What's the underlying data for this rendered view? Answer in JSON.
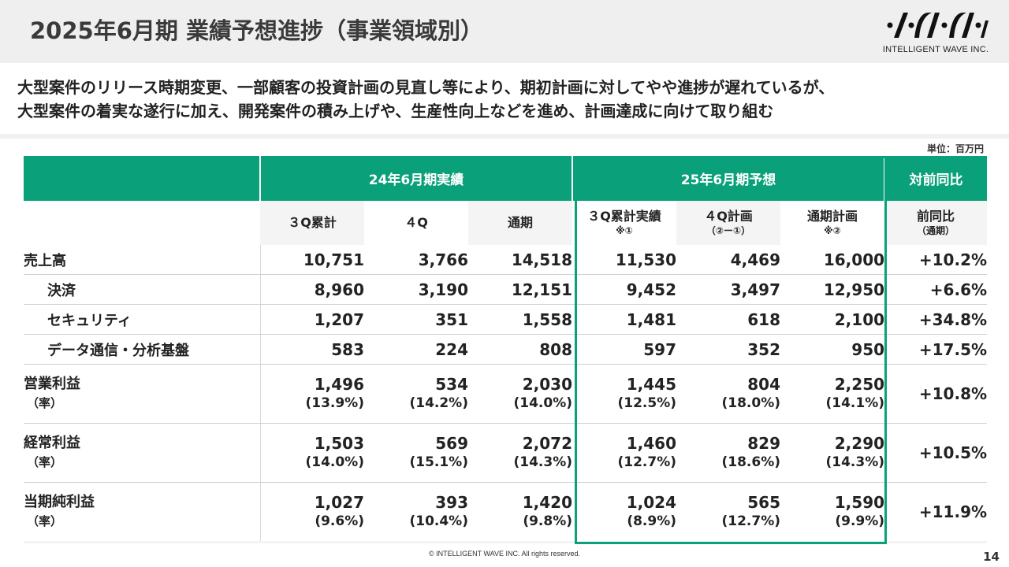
{
  "header": {
    "title": "2025年6月期 業績予想進捗（事業領域別）",
    "logo_text": "INTELLIGENT WAVE INC."
  },
  "summary": {
    "line1": "大型案件のリリース時期変更、一部顧客の投資計画の見直し等により、期初計画に対してやや進捗が遅れているが、",
    "line2": "大型案件の着実な遂行に加え、開発案件の積み上げや、生産性向上などを進め、計画達成に向けて取り組む"
  },
  "unit": "単位：百万円",
  "table": {
    "group_headers": {
      "actual": "24年6月期実績",
      "forecast": "25年6月期予想",
      "yoy": "対前同比"
    },
    "columns": [
      {
        "label": "３Q累計",
        "sub": ""
      },
      {
        "label": "４Q",
        "sub": ""
      },
      {
        "label": "通期",
        "sub": ""
      },
      {
        "label": "３Q累計実績",
        "sub": "※①"
      },
      {
        "label": "４Q計画",
        "sub": "（②ー①）"
      },
      {
        "label": "通期計画",
        "sub": "※②"
      },
      {
        "label": "前同比",
        "sub": "（通期）"
      }
    ],
    "rows": [
      {
        "label": "売上高",
        "values": [
          "10,751",
          "3,766",
          "14,518",
          "11,530",
          "4,469",
          "16,000"
        ],
        "yoy": "+10.2%"
      },
      {
        "label": "決済",
        "values": [
          "8,960",
          "3,190",
          "12,151",
          "9,452",
          "3,497",
          "12,950"
        ],
        "yoy": "+6.6%"
      },
      {
        "label": "セキュリティ",
        "values": [
          "1,207",
          "351",
          "1,558",
          "1,481",
          "618",
          "2,100"
        ],
        "yoy": "+34.8%"
      },
      {
        "label": "データ通信・分析基盤",
        "values": [
          "583",
          "224",
          "808",
          "597",
          "352",
          "950"
        ],
        "yoy": "+17.5%"
      },
      {
        "label": "営業利益",
        "rate_label": "（率）",
        "values": [
          "1,496",
          "534",
          "2,030",
          "1,445",
          "804",
          "2,250"
        ],
        "rates": [
          "(13.9%)",
          "(14.2%)",
          "(14.0%)",
          "(12.5%)",
          "(18.0%)",
          "(14.1%)"
        ],
        "yoy": "+10.8%"
      },
      {
        "label": "経常利益",
        "rate_label": "（率）",
        "values": [
          "1,503",
          "569",
          "2,072",
          "1,460",
          "829",
          "2,290"
        ],
        "rates": [
          "(14.0%)",
          "(15.1%)",
          "(14.3%)",
          "(12.7%)",
          "(18.6%)",
          "(14.3%)"
        ],
        "yoy": "+10.5%"
      },
      {
        "label": "当期純利益",
        "rate_label": "（率）",
        "values": [
          "1,027",
          "393",
          "1,420",
          "1,024",
          "565",
          "1,590"
        ],
        "rates": [
          "(9.6%)",
          "(10.4%)",
          "(9.8%)",
          "(8.9%)",
          "(12.7%)",
          "(9.9%)"
        ],
        "yoy": "+11.9%"
      }
    ]
  },
  "footer": {
    "copyright": "© INTELLIGENT WAVE INC. All rights reserved.",
    "page_number": "14"
  },
  "colors": {
    "accent": "#0aa07a",
    "header_bg": "#efefef"
  }
}
